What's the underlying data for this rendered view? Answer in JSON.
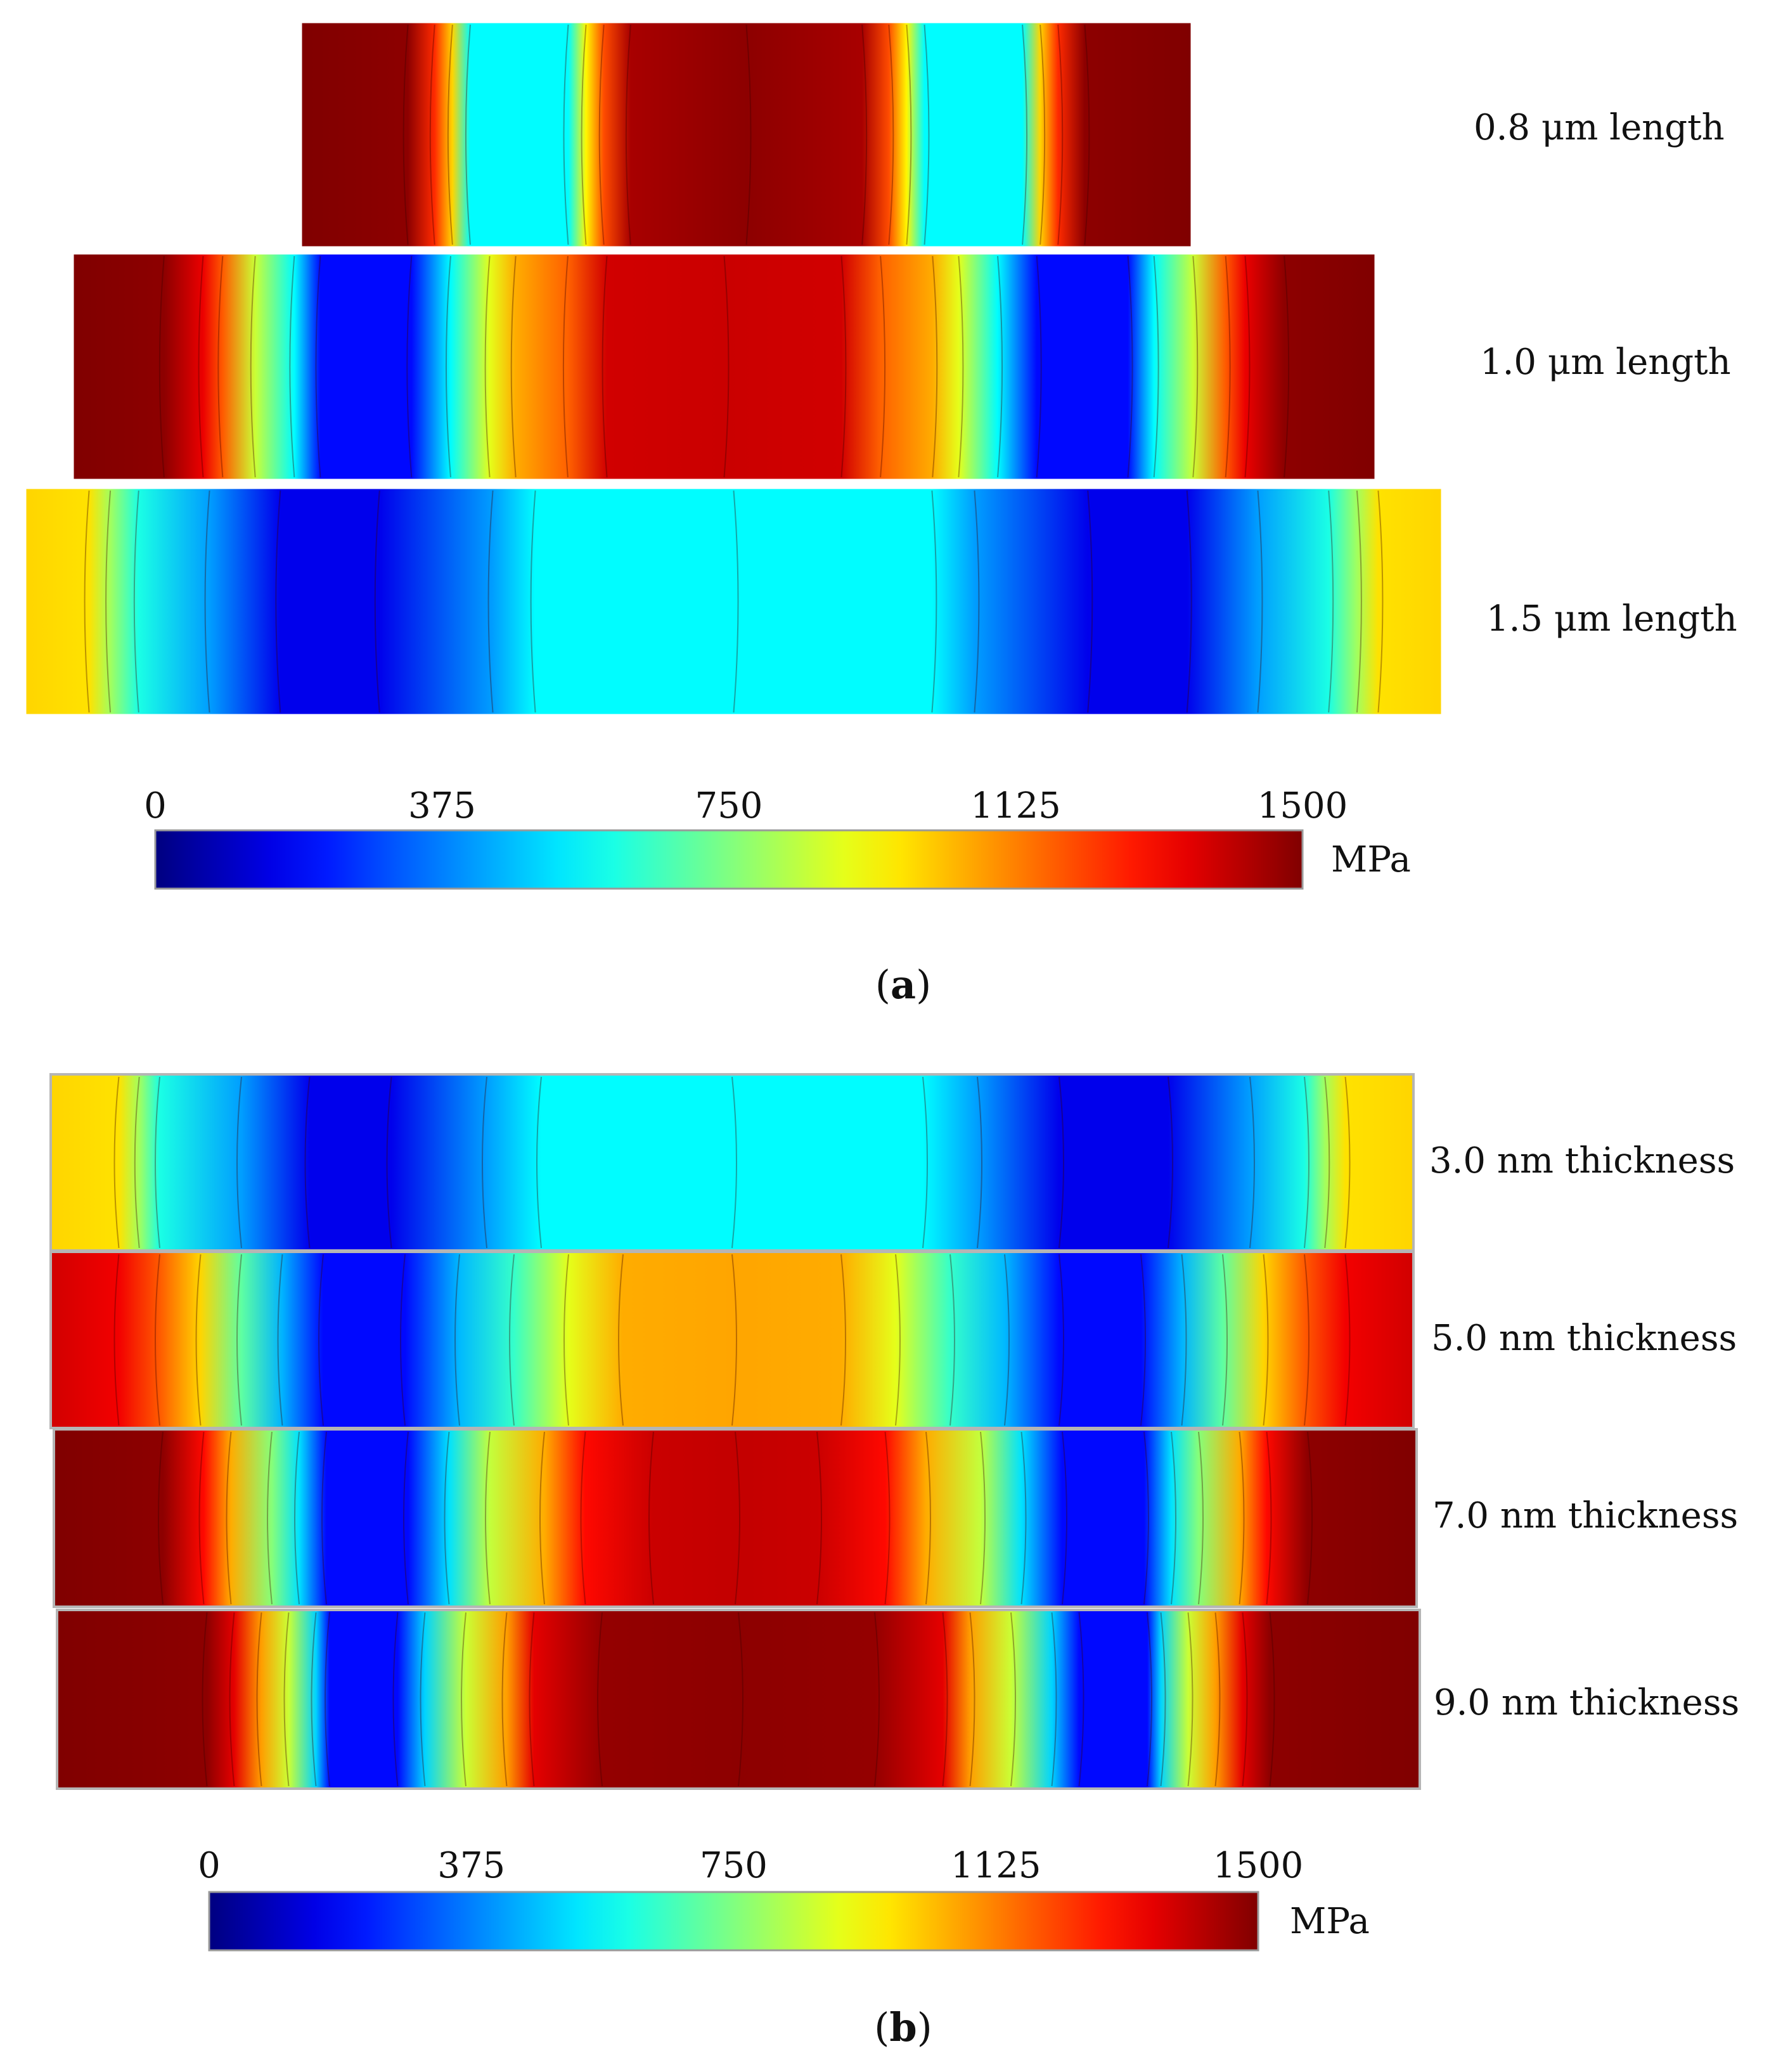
{
  "chart_data": [
    {
      "type": "heatmap",
      "panel": "a",
      "caption": "a",
      "quantity_unit": "MPa",
      "colorbar": {
        "min": 0,
        "max": 1500,
        "ticks": [
          0,
          375,
          750,
          1125,
          1500
        ],
        "tick_labels": [
          "0",
          "375",
          "750",
          "1125",
          "1500"
        ],
        "unit_label": "MPa",
        "colormap": "jet"
      },
      "fields": [
        {
          "label": "0.8 μm length",
          "length_um": 0.8,
          "profile": [
            [
              0.0,
              1500
            ],
            [
              0.12,
              1480
            ],
            [
              0.15,
              1250
            ],
            [
              0.17,
              1000
            ],
            [
              0.19,
              560
            ],
            [
              0.3,
              560
            ],
            [
              0.32,
              950
            ],
            [
              0.34,
              1200
            ],
            [
              0.37,
              1440
            ],
            [
              0.5,
              1480
            ],
            [
              0.63,
              1440
            ],
            [
              0.66,
              1200
            ],
            [
              0.68,
              950
            ],
            [
              0.7,
              560
            ],
            [
              0.81,
              560
            ],
            [
              0.83,
              1000
            ],
            [
              0.85,
              1250
            ],
            [
              0.88,
              1480
            ],
            [
              1.0,
              1500
            ]
          ]
        },
        {
          "label": "1.0 μm length",
          "length_um": 1.0,
          "profile": [
            [
              0.0,
              1500
            ],
            [
              0.07,
              1480
            ],
            [
              0.1,
              1340
            ],
            [
              0.115,
              1180
            ],
            [
              0.14,
              860
            ],
            [
              0.17,
              560
            ],
            [
              0.19,
              200
            ],
            [
              0.26,
              200
            ],
            [
              0.29,
              560
            ],
            [
              0.32,
              900
            ],
            [
              0.34,
              1060
            ],
            [
              0.38,
              1170
            ],
            [
              0.41,
              1380
            ],
            [
              0.5,
              1390
            ],
            [
              0.59,
              1380
            ],
            [
              0.62,
              1170
            ],
            [
              0.66,
              1060
            ],
            [
              0.68,
              900
            ],
            [
              0.71,
              560
            ],
            [
              0.74,
              200
            ],
            [
              0.81,
              200
            ],
            [
              0.83,
              560
            ],
            [
              0.86,
              860
            ],
            [
              0.885,
              1180
            ],
            [
              0.9,
              1340
            ],
            [
              0.93,
              1480
            ],
            [
              1.0,
              1500
            ]
          ]
        },
        {
          "label": "1.5 μm length",
          "length_um": 1.5,
          "profile": [
            [
              0.0,
              1000
            ],
            [
              0.045,
              980
            ],
            [
              0.06,
              800
            ],
            [
              0.08,
              600
            ],
            [
              0.13,
              420
            ],
            [
              0.18,
              160
            ],
            [
              0.25,
              160
            ],
            [
              0.33,
              420
            ],
            [
              0.36,
              560
            ],
            [
              0.5,
              560
            ],
            [
              0.64,
              560
            ],
            [
              0.67,
              420
            ],
            [
              0.75,
              160
            ],
            [
              0.82,
              160
            ],
            [
              0.87,
              420
            ],
            [
              0.92,
              600
            ],
            [
              0.94,
              800
            ],
            [
              0.955,
              980
            ],
            [
              1.0,
              1000
            ]
          ]
        }
      ]
    },
    {
      "type": "heatmap",
      "panel": "b",
      "caption": "b",
      "quantity_unit": "MPa",
      "colorbar": {
        "min": 0,
        "max": 1500,
        "ticks": [
          0,
          375,
          750,
          1125,
          1500
        ],
        "tick_labels": [
          "0",
          "375",
          "750",
          "1125",
          "1500"
        ],
        "unit_label": "MPa",
        "colormap": "jet"
      },
      "fields": [
        {
          "label": "3.0 nm thickness",
          "thickness_nm": 3.0,
          "profile": [
            [
              0.0,
              1000
            ],
            [
              0.05,
              980
            ],
            [
              0.065,
              800
            ],
            [
              0.08,
              600
            ],
            [
              0.14,
              420
            ],
            [
              0.19,
              160
            ],
            [
              0.25,
              160
            ],
            [
              0.32,
              420
            ],
            [
              0.36,
              560
            ],
            [
              0.5,
              560
            ],
            [
              0.64,
              560
            ],
            [
              0.68,
              420
            ],
            [
              0.74,
              160
            ],
            [
              0.82,
              160
            ],
            [
              0.88,
              420
            ],
            [
              0.92,
              600
            ],
            [
              0.935,
              800
            ],
            [
              0.95,
              980
            ],
            [
              1.0,
              1000
            ]
          ]
        },
        {
          "label": "5.0 nm thickness",
          "thickness_nm": 5.0,
          "profile": [
            [
              0.0,
              1380
            ],
            [
              0.05,
              1330
            ],
            [
              0.08,
              1180
            ],
            [
              0.11,
              1000
            ],
            [
              0.14,
              700
            ],
            [
              0.17,
              450
            ],
            [
              0.2,
              200
            ],
            [
              0.26,
              200
            ],
            [
              0.3,
              460
            ],
            [
              0.34,
              640
            ],
            [
              0.38,
              900
            ],
            [
              0.42,
              1060
            ],
            [
              0.5,
              1070
            ],
            [
              0.58,
              1060
            ],
            [
              0.62,
              900
            ],
            [
              0.66,
              640
            ],
            [
              0.7,
              460
            ],
            [
              0.74,
              200
            ],
            [
              0.8,
              200
            ],
            [
              0.83,
              450
            ],
            [
              0.86,
              700
            ],
            [
              0.89,
              1000
            ],
            [
              0.92,
              1180
            ],
            [
              0.95,
              1330
            ],
            [
              1.0,
              1380
            ]
          ]
        },
        {
          "label": "7.0 nm thickness",
          "thickness_nm": 7.0,
          "profile": [
            [
              0.0,
              1500
            ],
            [
              0.08,
              1480
            ],
            [
              0.11,
              1300
            ],
            [
              0.13,
              1060
            ],
            [
              0.16,
              760
            ],
            [
              0.18,
              520
            ],
            [
              0.2,
              200
            ],
            [
              0.26,
              200
            ],
            [
              0.29,
              520
            ],
            [
              0.32,
              850
            ],
            [
              0.36,
              1060
            ],
            [
              0.39,
              1300
            ],
            [
              0.44,
              1390
            ],
            [
              0.5,
              1400
            ],
            [
              0.56,
              1390
            ],
            [
              0.61,
              1300
            ],
            [
              0.64,
              1060
            ],
            [
              0.68,
              850
            ],
            [
              0.71,
              520
            ],
            [
              0.74,
              200
            ],
            [
              0.8,
              200
            ],
            [
              0.82,
              520
            ],
            [
              0.84,
              760
            ],
            [
              0.87,
              1060
            ],
            [
              0.89,
              1300
            ],
            [
              0.92,
              1480
            ],
            [
              1.0,
              1500
            ]
          ]
        },
        {
          "label": "9.0 nm thickness",
          "thickness_nm": 9.0,
          "profile": [
            [
              0.0,
              1500
            ],
            [
              0.11,
              1480
            ],
            [
              0.13,
              1350
            ],
            [
              0.15,
              1080
            ],
            [
              0.17,
              860
            ],
            [
              0.19,
              500
            ],
            [
              0.2,
              200
            ],
            [
              0.25,
              200
            ],
            [
              0.27,
              500
            ],
            [
              0.3,
              860
            ],
            [
              0.33,
              1080
            ],
            [
              0.35,
              1350
            ],
            [
              0.4,
              1470
            ],
            [
              0.5,
              1480
            ],
            [
              0.6,
              1470
            ],
            [
              0.65,
              1350
            ],
            [
              0.67,
              1080
            ],
            [
              0.7,
              860
            ],
            [
              0.73,
              500
            ],
            [
              0.75,
              200
            ],
            [
              0.8,
              200
            ],
            [
              0.81,
              500
            ],
            [
              0.83,
              860
            ],
            [
              0.85,
              1080
            ],
            [
              0.87,
              1350
            ],
            [
              0.89,
              1480
            ],
            [
              1.0,
              1500
            ]
          ]
        }
      ]
    }
  ]
}
